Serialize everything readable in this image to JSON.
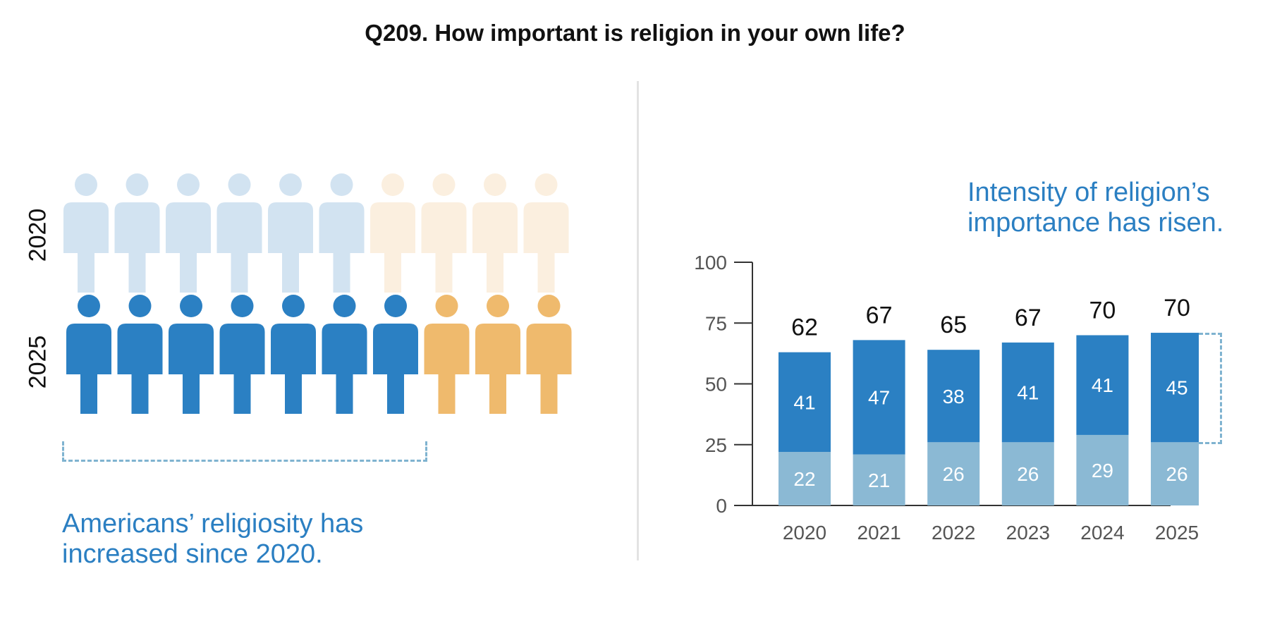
{
  "title": "Q209. How important is religion in your own life?",
  "pictogram": {
    "rows": [
      {
        "label": "2020",
        "important": 6,
        "not_important": 4,
        "important_color": "#d2e3f1",
        "other_color": "#fbefdf"
      },
      {
        "label": "2025",
        "important": 7,
        "not_important": 3,
        "important_color": "#2b80c3",
        "other_color": "#efba6d"
      }
    ],
    "note": "Americans’ religiosity has increased since 2020."
  },
  "chart_note": "Intensity of religion’s importance has risen.",
  "chart_data": {
    "type": "bar",
    "stacked": true,
    "categories": [
      "2020",
      "2021",
      "2022",
      "2023",
      "2024",
      "2025"
    ],
    "series": [
      {
        "values": [
          22,
          21,
          26,
          26,
          29,
          26
        ],
        "color": "#8bb9d4"
      },
      {
        "values": [
          41,
          47,
          38,
          41,
          41,
          45
        ],
        "color": "#2b80c3"
      }
    ],
    "totals": [
      62,
      67,
      65,
      67,
      70,
      70
    ],
    "ylim": [
      0,
      100
    ],
    "yticks": [
      0,
      25,
      50,
      75,
      100
    ],
    "title": "",
    "xlabel": "",
    "ylabel": ""
  }
}
